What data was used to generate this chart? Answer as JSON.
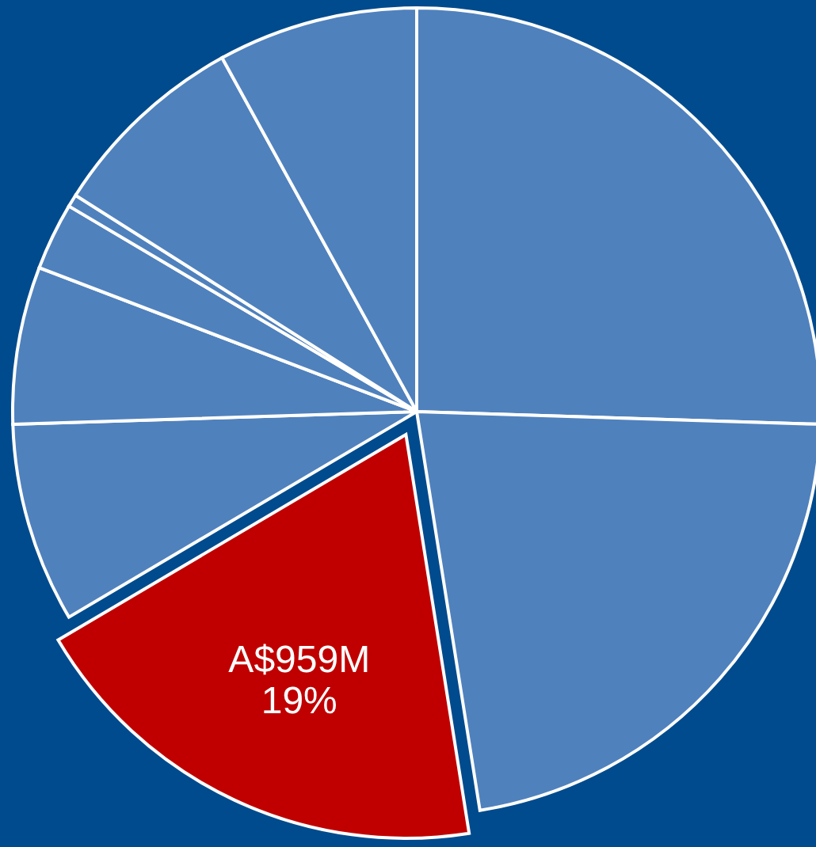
{
  "chart_data": {
    "type": "pie",
    "categories": [
      null,
      null,
      null,
      null,
      null,
      null,
      null,
      null,
      null
    ],
    "values": [
      25.5,
      22,
      19,
      8,
      6.3,
      2.7,
      0.5,
      8,
      8
    ],
    "colors": [
      "#4f81bd",
      "#4f81bd",
      "#c00000",
      "#4f81bd",
      "#4f81bd",
      "#4f81bd",
      "#4f81bd",
      "#4f81bd",
      "#4f81bd"
    ],
    "value_labels": [
      null,
      null,
      "A$959M\n19%",
      null,
      null,
      null,
      null,
      null,
      null
    ]
  }
}
